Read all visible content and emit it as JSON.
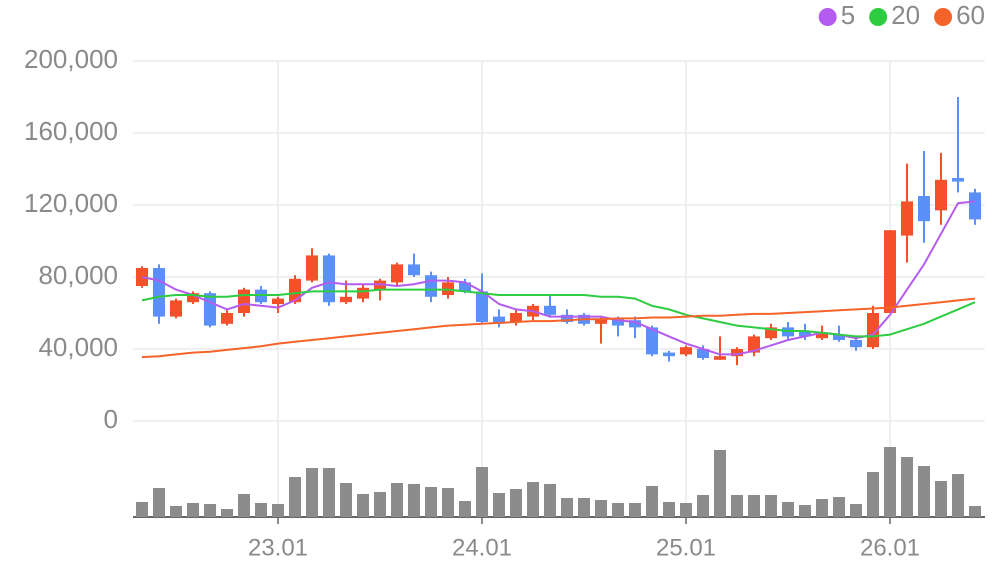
{
  "chart_data": {
    "type": "candlestick",
    "categories": [
      null,
      null,
      null,
      null,
      null,
      null,
      null,
      null,
      "23.01",
      null,
      null,
      null,
      null,
      null,
      null,
      null,
      null,
      null,
      null,
      null,
      "24.01",
      null,
      null,
      null,
      null,
      null,
      null,
      null,
      null,
      null,
      null,
      null,
      "25.01",
      null,
      null,
      null,
      null,
      null,
      null,
      null,
      null,
      null,
      null,
      null,
      "26.01",
      null,
      null,
      null,
      null,
      null
    ],
    "open": [
      75000,
      85000,
      58000,
      66000,
      71000,
      54000,
      60000,
      73000,
      65000,
      66000,
      78000,
      92000,
      66000,
      68000,
      73000,
      77000,
      87000,
      81000,
      70000,
      77000,
      72000,
      58000,
      55000,
      58000,
      64000,
      59000,
      59000,
      54000,
      57000,
      56000,
      52000,
      38000,
      37000,
      40000,
      34000,
      36000,
      38000,
      46000,
      52000,
      50000,
      46000,
      48000,
      45000,
      41000,
      60000,
      103000,
      125000,
      117000,
      135000,
      127000
    ],
    "high": [
      86000,
      87000,
      68000,
      72000,
      72000,
      62000,
      74000,
      75000,
      69000,
      81000,
      96000,
      93000,
      78000,
      76000,
      79000,
      88000,
      93000,
      83000,
      80000,
      79000,
      82000,
      62000,
      62000,
      65000,
      70000,
      62000,
      60000,
      58000,
      58000,
      58000,
      53000,
      39000,
      42000,
      42000,
      47000,
      41000,
      48000,
      54000,
      55000,
      54000,
      53000,
      53000,
      46000,
      64000,
      106000,
      143000,
      150000,
      149000,
      180000,
      129000
    ],
    "low": [
      74000,
      54000,
      57000,
      65000,
      52000,
      53000,
      58000,
      65000,
      60000,
      65000,
      77000,
      64000,
      65000,
      66000,
      67000,
      75000,
      80000,
      66000,
      68000,
      71000,
      54000,
      52000,
      53000,
      56000,
      58000,
      54000,
      53000,
      43000,
      47000,
      46000,
      36000,
      33000,
      36000,
      34000,
      34000,
      31000,
      36000,
      45000,
      45000,
      45000,
      45000,
      44000,
      39000,
      40000,
      60000,
      88000,
      99000,
      109000,
      127000,
      109000
    ],
    "close": [
      85000,
      58000,
      67000,
      71000,
      53000,
      60000,
      73000,
      66000,
      68000,
      79000,
      92000,
      66000,
      69000,
      74000,
      78000,
      87000,
      81000,
      69000,
      77000,
      72000,
      55000,
      54000,
      60000,
      64000,
      59000,
      55000,
      54000,
      57000,
      53000,
      52000,
      37000,
      36000,
      41000,
      35000,
      36000,
      40000,
      47000,
      52000,
      47000,
      47000,
      49000,
      45000,
      41000,
      60000,
      106000,
      122000,
      111000,
      134000,
      133000,
      112000
    ],
    "volume": [
      15,
      29,
      11,
      14,
      13,
      8,
      23,
      14,
      13,
      40,
      49,
      49,
      34,
      23,
      25,
      34,
      33,
      30,
      29,
      16,
      50,
      24,
      28,
      35,
      33,
      19,
      19,
      17,
      14,
      14,
      31,
      15,
      14,
      22,
      67,
      22,
      22,
      22,
      15,
      12,
      18,
      20,
      13,
      45,
      70,
      60,
      51,
      36,
      43,
      11
    ],
    "up_color": "#f4502a",
    "down_color": "#5b8ff9",
    "volume_color": "#8c8c8c",
    "series": [
      {
        "name": "5",
        "color": "#b45cf0",
        "values": [
          80000,
          78000,
          73000,
          70000,
          66000,
          62000,
          65000,
          64000,
          63000,
          67000,
          74000,
          77000,
          76000,
          76000,
          76000,
          75000,
          76000,
          78000,
          78000,
          77000,
          72000,
          65000,
          62000,
          61000,
          58000,
          58000,
          58000,
          58000,
          56000,
          55000,
          51000,
          47000,
          43000,
          40000,
          37000,
          37000,
          39000,
          42000,
          45000,
          47000,
          49000,
          48000,
          46000,
          48000,
          59000,
          73000,
          87000,
          104000,
          121000,
          122000
        ]
      },
      {
        "name": "20",
        "color": "#2ecc40",
        "values": [
          67000,
          69000,
          70000,
          70000,
          69000,
          69000,
          70000,
          70000,
          70000,
          71000,
          72000,
          72000,
          72000,
          72000,
          73000,
          73000,
          73000,
          73000,
          73000,
          72000,
          71000,
          70000,
          70000,
          70000,
          70000,
          70000,
          70000,
          69000,
          69000,
          68000,
          64000,
          62000,
          59000,
          57000,
          55000,
          53000,
          52000,
          51000,
          50000,
          50000,
          49000,
          48000,
          47000,
          47000,
          48000,
          51000,
          54000,
          58000,
          62000,
          66000
        ]
      },
      {
        "name": "60",
        "color": "#f4642a",
        "values": [
          35500,
          36000,
          37000,
          38000,
          38500,
          39500,
          40500,
          41500,
          43000,
          44000,
          45000,
          46000,
          47000,
          48000,
          49000,
          50000,
          51000,
          52000,
          53000,
          53500,
          54000,
          54500,
          55000,
          55500,
          55500,
          56000,
          56500,
          56500,
          57000,
          57000,
          57500,
          57500,
          58000,
          58500,
          58500,
          59000,
          59500,
          59500,
          60000,
          60500,
          61000,
          61500,
          62000,
          62500,
          63000,
          64000,
          65000,
          66000,
          67000,
          68000
        ]
      }
    ],
    "ylim": [
      0,
      200000
    ],
    "yticks": [
      0,
      {
        "value": 40000,
        "label": "40,000"
      },
      {
        "value": 80000,
        "label": "80,000"
      },
      {
        "value": 120000,
        "label": "120,000"
      },
      {
        "value": 160000,
        "label": "160,000"
      },
      {
        "value": 200000,
        "label": "200,000"
      }
    ],
    "grid": true,
    "legend": "top-right"
  }
}
